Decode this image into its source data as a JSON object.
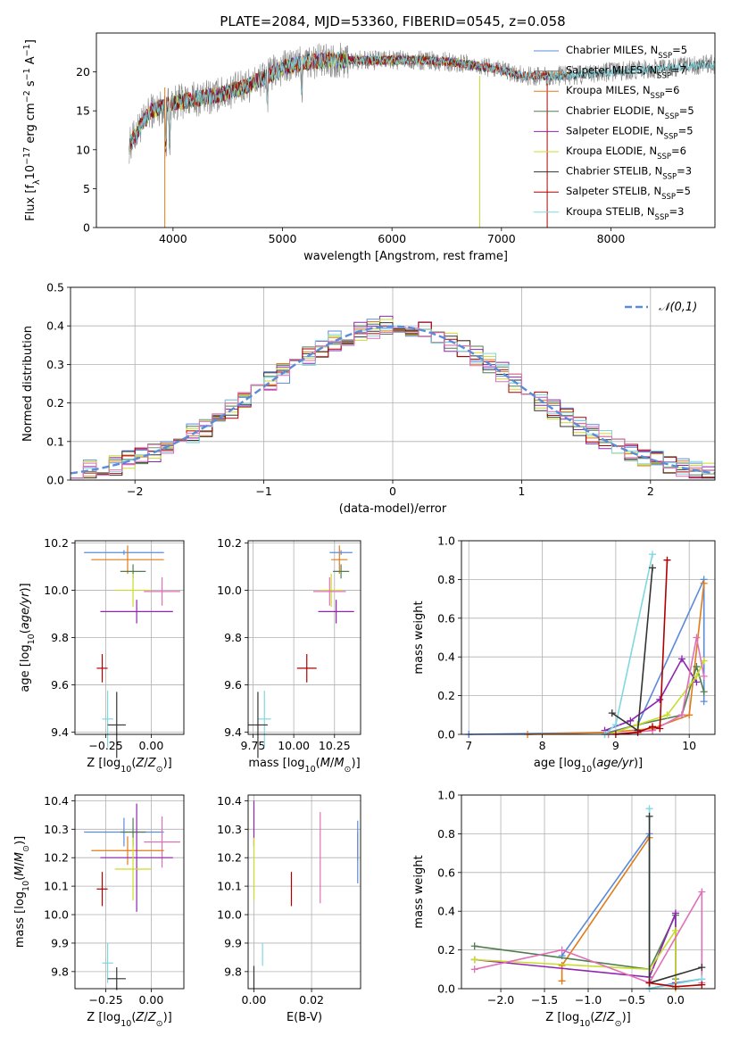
{
  "title": "PLATE=2084, MJD=53360, FIBERID=0545, z=0.058",
  "colors": {
    "chabrier_miles": "#5b8bd9",
    "salpeter_miles": "#7f7f7f",
    "kroupa_miles": "#e07b1a",
    "chabrier_elodie": "#4f7d4f",
    "salpeter_elodie": "#8e25b0",
    "kroupa_elodie": "#c9dc2a",
    "chabrier_stelib": "#333333",
    "salpeter_stelib": "#b00000",
    "kroupa_stelib": "#7fd8e0",
    "pink": "#e070b8",
    "gaussian": "#5b8bd9",
    "grid": "#b0b0b0"
  },
  "chart_data": [
    {
      "type": "line",
      "title": "PLATE=2084, MJD=53360, FIBERID=0545, z=0.058",
      "xlabel": "wavelength [Angstrom, rest frame]",
      "ylabel": "Flux [fλ10⁻¹⁷ erg cm⁻² s⁻¹ A⁻¹]",
      "xlim": [
        3300,
        8950
      ],
      "ylim": [
        0,
        25
      ],
      "xticks": [
        4000,
        5000,
        6000,
        7000,
        8000
      ],
      "yticks": [
        0,
        5,
        10,
        15,
        20
      ],
      "legend_position": "top-right",
      "legend": [
        "Chabrier MILES, N_SSP=5",
        "Salpeter MILES, N_SSP=7",
        "Kroupa MILES, N_SSP=6",
        "Chabrier ELODIE, N_SSP=5",
        "Salpeter ELODIE, N_SSP=5",
        "Kroupa ELODIE, N_SSP=6",
        "Chabrier STELIB, N_SSP=3",
        "Salpeter STELIB, N_SSP=5",
        "Kroupa STELIB, N_SSP=3"
      ],
      "continuum": {
        "x": [
          3600,
          3700,
          3800,
          3900,
          4000,
          4200,
          4400,
          4600,
          4800,
          5000,
          5200,
          5400,
          5600,
          5800,
          6000,
          6300,
          6600,
          6900,
          7200,
          7400,
          7600,
          8000,
          8500,
          8900
        ],
        "y": [
          10.5,
          13,
          15,
          15.5,
          16,
          16.5,
          17,
          17.8,
          19,
          20.5,
          21.2,
          21.5,
          21.5,
          21.5,
          21.5,
          21.5,
          21.2,
          20.5,
          19.5,
          19.5,
          19.5,
          20,
          20.5,
          21
        ]
      }
    },
    {
      "type": "step",
      "xlabel": "(data-model)/error",
      "ylabel": "Normed distribution",
      "xlim": [
        -2.5,
        2.5
      ],
      "ylim": [
        0,
        0.5
      ],
      "xticks": [
        -2,
        -1,
        0,
        1,
        2
      ],
      "yticks": [
        0.0,
        0.1,
        0.2,
        0.3,
        0.4,
        0.5
      ],
      "legend": [
        "𝒩(0,1)"
      ],
      "legend_position": "top-right",
      "grid": true
    },
    {
      "type": "errorbar",
      "xlabel": "Z [log10(Z/Z⊙)]",
      "ylabel": "age  [log10(age/yr)]",
      "xlim": [
        -0.42,
        0.18
      ],
      "ylim": [
        9.39,
        10.21
      ],
      "xticks": [
        -0.25,
        0.0
      ],
      "yticks": [
        9.4,
        9.6,
        9.8,
        10.0,
        10.2
      ],
      "points": [
        {
          "c": "chabrier_miles",
          "x": -0.15,
          "y": 10.16,
          "xe": 0.22,
          "ye": 0.01
        },
        {
          "c": "kroupa_miles",
          "x": -0.13,
          "y": 10.13,
          "xe": 0.2,
          "ye": 0.06
        },
        {
          "c": "chabrier_elodie",
          "x": -0.1,
          "y": 10.08,
          "xe": 0.07,
          "ye": 0.03
        },
        {
          "c": "kroupa_elodie",
          "x": -0.1,
          "y": 10.0,
          "xe": 0.1,
          "ye": 0.07
        },
        {
          "c": "pink",
          "x": 0.06,
          "y": 9.995,
          "xe": 0.1,
          "ye": 0.06
        },
        {
          "c": "salpeter_elodie",
          "x": -0.08,
          "y": 9.91,
          "xe": 0.2,
          "ye": 0.05
        },
        {
          "c": "salpeter_stelib",
          "x": -0.27,
          "y": 9.67,
          "xe": 0.03,
          "ye": 0.06
        },
        {
          "c": "kroupa_stelib",
          "x": -0.24,
          "y": 9.455,
          "xe": 0.03,
          "ye": 0.12
        },
        {
          "c": "chabrier_stelib",
          "x": -0.19,
          "y": 9.43,
          "xe": 0.05,
          "ye": 0.14
        }
      ]
    },
    {
      "type": "errorbar",
      "xlabel": "mass [log10(M/M⊙)]",
      "xlim": [
        9.72,
        10.41
      ],
      "ylim": [
        9.39,
        10.21
      ],
      "xticks": [
        9.75,
        10.0,
        10.25
      ],
      "yticks": [
        9.4,
        9.6,
        9.8,
        10.0,
        10.2
      ],
      "points": [
        {
          "c": "chabrier_miles",
          "x": 10.29,
          "y": 10.16,
          "xe": 0.07,
          "ye": 0.01
        },
        {
          "c": "kroupa_miles",
          "x": 10.28,
          "y": 10.13,
          "xe": 0.05,
          "ye": 0.06
        },
        {
          "c": "chabrier_elodie",
          "x": 10.29,
          "y": 10.08,
          "xe": 0.05,
          "ye": 0.03
        },
        {
          "c": "kroupa_elodie",
          "x": 10.23,
          "y": 10.0,
          "xe": 0.07,
          "ye": 0.07
        },
        {
          "c": "pink",
          "x": 10.22,
          "y": 9.995,
          "xe": 0.1,
          "ye": 0.06
        },
        {
          "c": "salpeter_elodie",
          "x": 10.26,
          "y": 9.91,
          "xe": 0.11,
          "ye": 0.05
        },
        {
          "c": "salpeter_stelib",
          "x": 10.08,
          "y": 9.67,
          "xe": 0.06,
          "ye": 0.06
        },
        {
          "c": "kroupa_stelib",
          "x": 9.82,
          "y": 9.455,
          "xe": 0.04,
          "ye": 0.12
        },
        {
          "c": "chabrier_stelib",
          "x": 9.78,
          "y": 9.43,
          "xe": 0.06,
          "ye": 0.14
        }
      ]
    },
    {
      "type": "line",
      "xlabel": "age  [log10(age/yr)]",
      "ylabel": "mass weight",
      "xlim": [
        6.9,
        10.35
      ],
      "ylim": [
        0,
        1.0
      ],
      "xticks": [
        7,
        8,
        9,
        10
      ],
      "yticks": [
        0.0,
        0.2,
        0.4,
        0.6,
        0.8,
        1.0
      ],
      "series": [
        {
          "c": "chabrier_miles",
          "x": [
            7.0,
            8.9,
            9.3,
            10.2,
            10.2
          ],
          "y": [
            0.0,
            0.01,
            0.05,
            0.8,
            0.17
          ]
        },
        {
          "c": "kroupa_miles",
          "x": [
            7.8,
            8.9,
            9.5,
            10.0,
            10.2
          ],
          "y": [
            0.0,
            0.01,
            0.03,
            0.1,
            0.78
          ]
        },
        {
          "c": "chabrier_elodie",
          "x": [
            8.85,
            9.3,
            9.9,
            10.1,
            10.2
          ],
          "y": [
            0.0,
            0.05,
            0.1,
            0.35,
            0.22
          ]
        },
        {
          "c": "salpeter_elodie",
          "x": [
            8.85,
            9.2,
            9.6,
            9.9,
            10.1
          ],
          "y": [
            0.02,
            0.07,
            0.18,
            0.39,
            0.27
          ]
        },
        {
          "c": "kroupa_elodie",
          "x": [
            8.9,
            9.3,
            9.7,
            10.1,
            10.2
          ],
          "y": [
            0.0,
            0.05,
            0.1,
            0.3,
            0.38
          ]
        },
        {
          "c": "pink",
          "x": [
            8.9,
            9.5,
            9.9,
            10.1,
            10.2
          ],
          "y": [
            0.0,
            0.02,
            0.1,
            0.5,
            0.3
          ]
        },
        {
          "c": "kroupa_stelib",
          "x": [
            8.85,
            9.0,
            9.5
          ],
          "y": [
            0.0,
            0.05,
            0.93
          ]
        },
        {
          "c": "chabrier_stelib",
          "x": [
            8.95,
            9.3,
            9.5
          ],
          "y": [
            0.11,
            0.02,
            0.86
          ]
        },
        {
          "c": "salpeter_stelib",
          "x": [
            9.0,
            9.3,
            9.5,
            9.6,
            9.7
          ],
          "y": [
            0.0,
            0.01,
            0.04,
            0.03,
            0.9
          ]
        }
      ]
    },
    {
      "type": "errorbar",
      "xlabel": "Z [log10(Z/Z⊙)]",
      "ylabel": "mass [log10(M/M⊙)]",
      "xlim": [
        -0.42,
        0.18
      ],
      "ylim": [
        9.74,
        10.42
      ],
      "xticks": [
        -0.25,
        0.0
      ],
      "yticks": [
        9.8,
        9.9,
        10.0,
        10.1,
        10.2,
        10.3,
        10.4
      ],
      "points": [
        {
          "c": "chabrier_miles",
          "x": -0.15,
          "y": 10.29,
          "xe": 0.22,
          "ye": 0.05
        },
        {
          "c": "chabrier_elodie",
          "x": -0.1,
          "y": 10.29,
          "xe": 0.07,
          "ye": 0.05
        },
        {
          "c": "pink",
          "x": 0.06,
          "y": 10.255,
          "xe": 0.1,
          "ye": 0.09
        },
        {
          "c": "kroupa_miles",
          "x": -0.13,
          "y": 10.225,
          "xe": 0.2,
          "ye": 0.05
        },
        {
          "c": "salpeter_elodie",
          "x": -0.08,
          "y": 10.2,
          "xe": 0.2,
          "ye": 0.19
        },
        {
          "c": "kroupa_elodie",
          "x": -0.1,
          "y": 10.16,
          "xe": 0.1,
          "ye": 0.11
        },
        {
          "c": "salpeter_stelib",
          "x": -0.27,
          "y": 10.09,
          "xe": 0.03,
          "ye": 0.06
        },
        {
          "c": "kroupa_stelib",
          "x": -0.24,
          "y": 9.83,
          "xe": 0.03,
          "ye": 0.07
        },
        {
          "c": "chabrier_stelib",
          "x": -0.19,
          "y": 9.775,
          "xe": 0.05,
          "ye": 0.04
        }
      ]
    },
    {
      "type": "errorbar",
      "xlabel": "E(B-V)",
      "xlim": [
        -0.002,
        0.037
      ],
      "ylim": [
        9.74,
        10.42
      ],
      "xticks": [
        0.0,
        0.02
      ],
      "yticks": [
        9.8,
        9.9,
        10.0,
        10.1,
        10.2,
        10.3,
        10.4
      ],
      "points": [
        {
          "c": "salpeter_elodie",
          "x": 0.0,
          "y": 10.32,
          "ye": 0.08
        },
        {
          "c": "kroupa_elodie",
          "x": 0.0,
          "y": 10.16,
          "ye": 0.11
        },
        {
          "c": "chabrier_stelib",
          "x": 0.0,
          "y": 9.78,
          "ye": 0.04
        },
        {
          "c": "kroupa_stelib",
          "x": 0.003,
          "y": 9.86,
          "ye": 0.04
        },
        {
          "c": "salpeter_stelib",
          "x": 0.013,
          "y": 10.09,
          "ye": 0.06
        },
        {
          "c": "pink",
          "x": 0.023,
          "y": 10.2,
          "ye": 0.16
        },
        {
          "c": "kroupa_miles",
          "x": 0.036,
          "y": 10.24,
          "ye": 0.05
        },
        {
          "c": "chabrier_miles",
          "x": 0.036,
          "y": 10.22,
          "ye": 0.11
        }
      ]
    },
    {
      "type": "line",
      "xlabel": "Z [log10(Z/Z⊙)]",
      "ylabel": "mass weight",
      "xlim": [
        -2.45,
        0.45
      ],
      "ylim": [
        0,
        1.0
      ],
      "xticks": [
        -2.0,
        -1.5,
        -1.0,
        -0.5,
        0.0
      ],
      "yticks": [
        0.0,
        0.2,
        0.4,
        0.6,
        0.8,
        1.0
      ],
      "series": [
        {
          "c": "chabrier_miles",
          "x": [
            -1.3,
            -0.3,
            -0.3,
            0.0,
            0.3
          ],
          "y": [
            0.17,
            0.8,
            0.0,
            0.03,
            0.05
          ]
        },
        {
          "c": "kroupa_miles",
          "x": [
            -1.3,
            -1.3,
            -0.3,
            -0.3,
            0.0
          ],
          "y": [
            0.04,
            0.12,
            0.78,
            0.03,
            0.01
          ]
        },
        {
          "c": "chabrier_elodie",
          "x": [
            -2.3,
            -0.3,
            0.0,
            0.0
          ],
          "y": [
            0.22,
            0.1,
            0.38,
            0.05
          ]
        },
        {
          "c": "salpeter_elodie",
          "x": [
            -2.3,
            -0.3,
            0.0,
            0.0
          ],
          "y": [
            0.15,
            0.06,
            0.39,
            0.03
          ]
        },
        {
          "c": "kroupa_elodie",
          "x": [
            -2.3,
            -0.3,
            0.0,
            0.0
          ],
          "y": [
            0.15,
            0.1,
            0.3,
            0.0
          ]
        },
        {
          "c": "pink",
          "x": [
            -2.3,
            -1.3,
            -0.3,
            0.3,
            0.3
          ],
          "y": [
            0.1,
            0.2,
            0.03,
            0.5,
            0.03
          ]
        },
        {
          "c": "kroupa_stelib",
          "x": [
            -0.3,
            -0.3,
            0.3
          ],
          "y": [
            0.93,
            0.0,
            0.05
          ]
        },
        {
          "c": "chabrier_stelib",
          "x": [
            -0.3,
            -0.3,
            0.3
          ],
          "y": [
            0.89,
            0.03,
            0.11
          ]
        },
        {
          "c": "salpeter_stelib",
          "x": [
            -0.3,
            0.0,
            0.3
          ],
          "y": [
            0.03,
            0.01,
            0.02
          ]
        }
      ]
    }
  ]
}
